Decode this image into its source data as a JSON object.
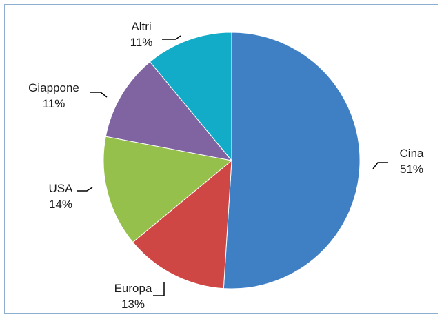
{
  "chart_data": {
    "type": "pie",
    "title": "",
    "start": "12 o'clock",
    "direction": "clockwise",
    "legend": "none (category and percent data labels beside each slice)",
    "slices": [
      {
        "label": "Cina",
        "value": 51,
        "display": "51%",
        "color": "#3f80c4"
      },
      {
        "label": "Europa",
        "value": 13,
        "display": "13%",
        "color": "#cf4745"
      },
      {
        "label": "USA",
        "value": 14,
        "display": "14%",
        "color": "#96c04c"
      },
      {
        "label": "Giappone",
        "value": 11,
        "display": "11%",
        "color": "#8064a2"
      },
      {
        "label": "Altri",
        "value": 11,
        "display": "11%",
        "color": "#12acc8"
      }
    ]
  }
}
